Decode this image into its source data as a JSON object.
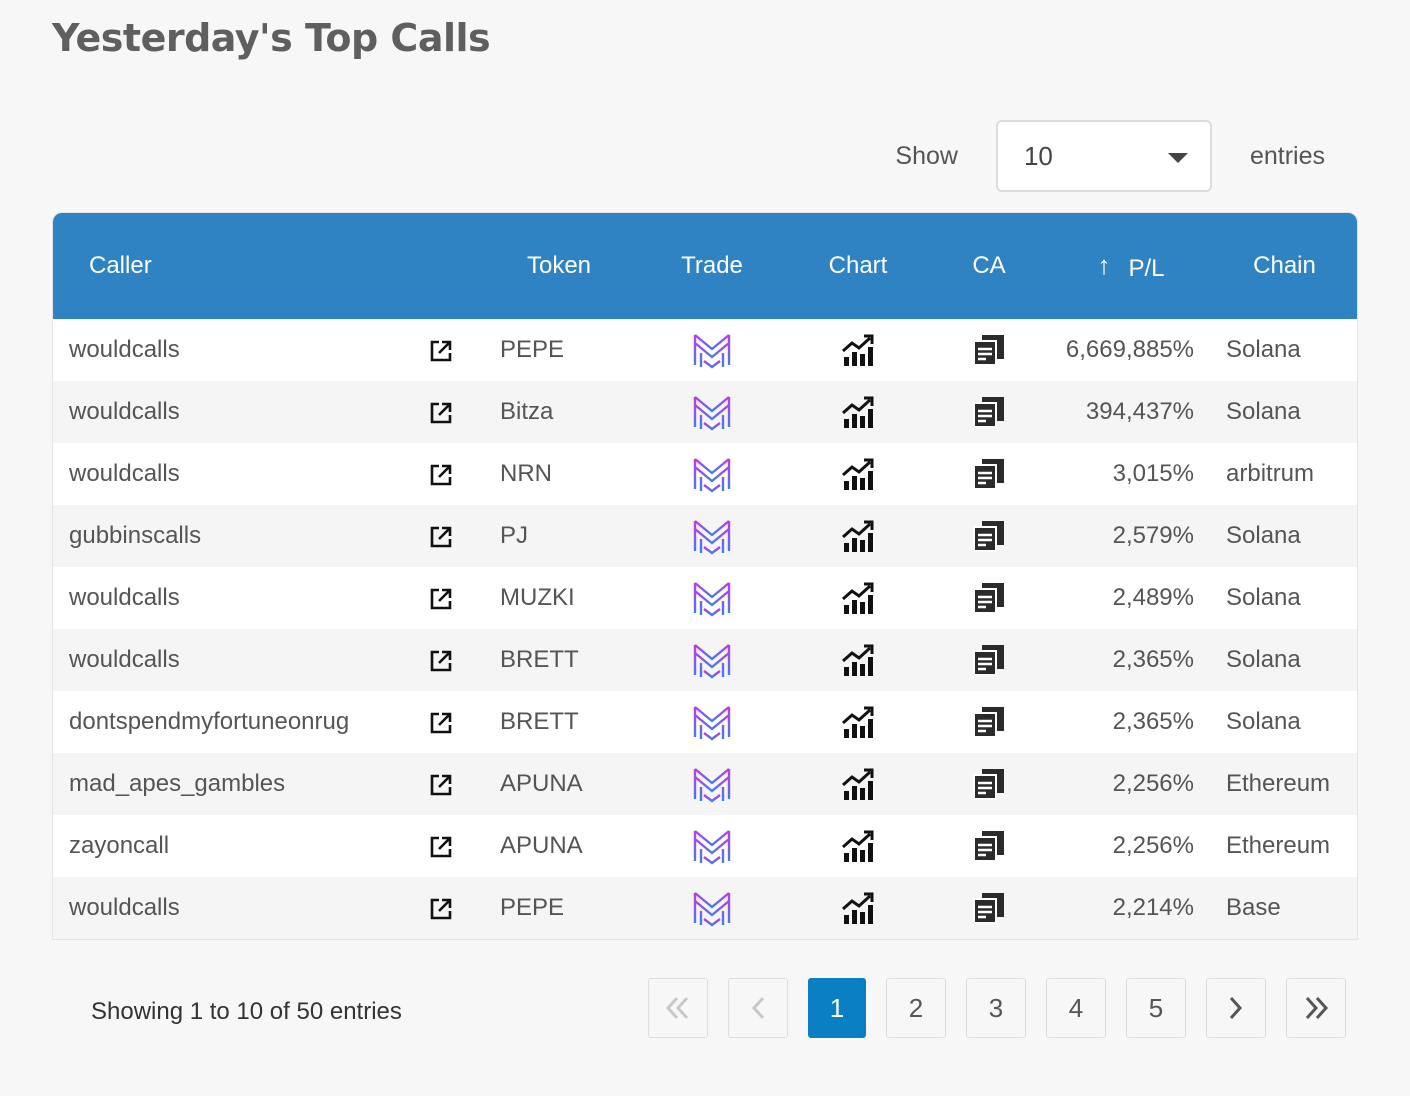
{
  "page": {
    "title": "Yesterday's Top Calls"
  },
  "length": {
    "show_label": "Show",
    "selected": "10",
    "entries_label": "entries"
  },
  "columns": {
    "caller": "Caller",
    "token": "Token",
    "trade": "Trade",
    "chart": "Chart",
    "ca": "CA",
    "pl": "P/L",
    "chain": "Chain"
  },
  "rows": [
    {
      "caller": "wouldcalls",
      "token": "PEPE",
      "pl": "6,669,885%",
      "chain": "Solana"
    },
    {
      "caller": "wouldcalls",
      "token": "Bitza",
      "pl": "394,437%",
      "chain": "Solana"
    },
    {
      "caller": "wouldcalls",
      "token": "NRN",
      "pl": "3,015%",
      "chain": "arbitrum"
    },
    {
      "caller": "gubbinscalls",
      "token": "PJ",
      "pl": "2,579%",
      "chain": "Solana"
    },
    {
      "caller": "wouldcalls",
      "token": "MUZKI",
      "pl": "2,489%",
      "chain": "Solana"
    },
    {
      "caller": "wouldcalls",
      "token": "BRETT",
      "pl": "2,365%",
      "chain": "Solana"
    },
    {
      "caller": "dontspendmyfortuneonrug",
      "token": "BRETT",
      "pl": "2,365%",
      "chain": "Solana"
    },
    {
      "caller": "mad_apes_gambles",
      "token": "APUNA",
      "pl": "2,256%",
      "chain": "Ethereum"
    },
    {
      "caller": "zayoncall",
      "token": "APUNA",
      "pl": "2,256%",
      "chain": "Ethereum"
    },
    {
      "caller": "wouldcalls",
      "token": "PEPE",
      "pl": "2,214%",
      "chain": "Base"
    }
  ],
  "icons": {
    "link": "external-link-icon",
    "trade": "trade-logo-icon",
    "chart": "chart-growth-icon",
    "ca": "copy-address-icon",
    "sort": "sort-ascending-icon"
  },
  "colors": {
    "header": "#2f83c3",
    "active_page": "#0a7fc4"
  },
  "info": "Showing 1 to 10 of 50 entries",
  "pagination": {
    "pages": [
      "1",
      "2",
      "3",
      "4",
      "5"
    ],
    "current": "1"
  }
}
